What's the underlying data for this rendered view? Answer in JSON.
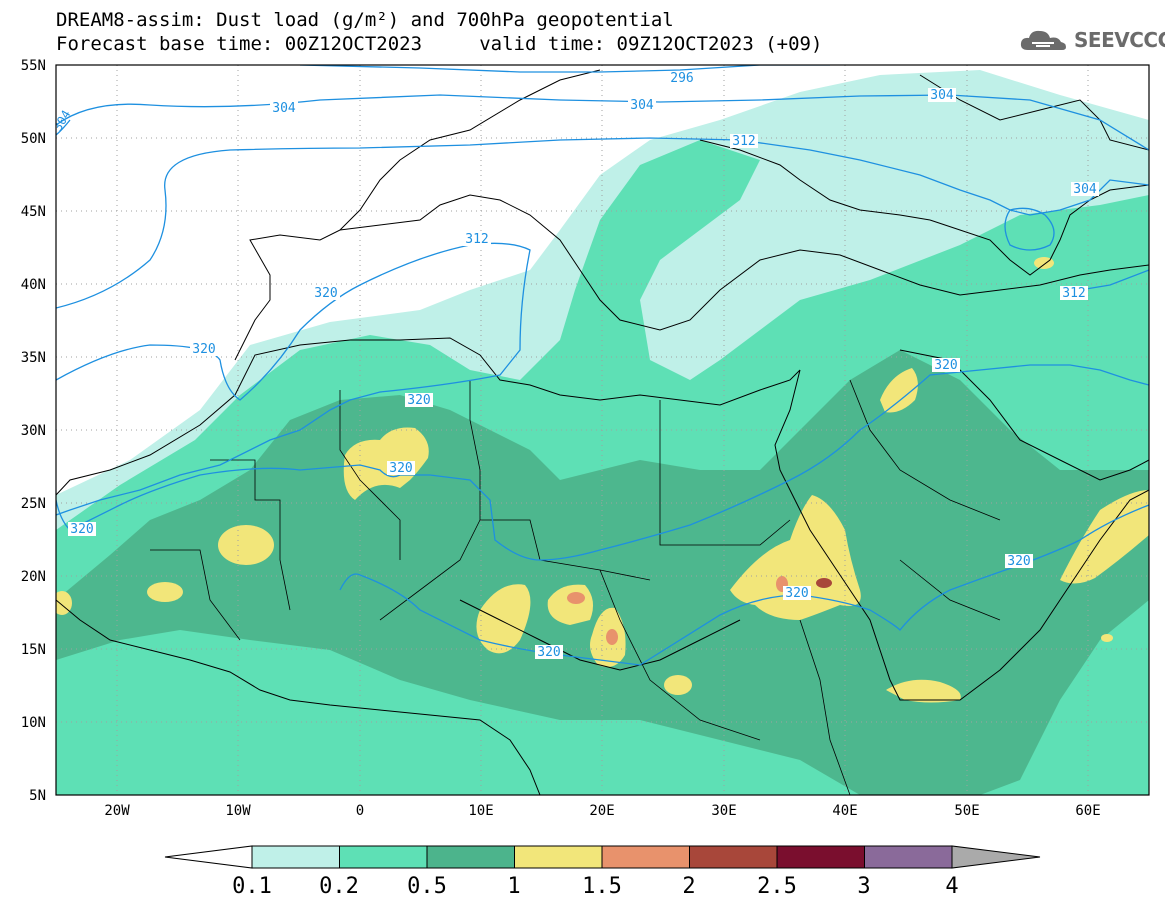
{
  "header": {
    "title_line1": "DREAM8-assim: Dust load (g/m²) and 700hPa geopotential",
    "title_line2": "Forecast base time: 00Z12OCT2023     valid time: 09Z12OCT2023 (+09)"
  },
  "logo": {
    "text": "SEEVCCC",
    "icon": "cloud-icon"
  },
  "map": {
    "lon_range": [
      -25,
      65
    ],
    "lat_range": [
      5,
      55
    ],
    "x_ticks": [
      "20W",
      "10W",
      "0",
      "10E",
      "20E",
      "30E",
      "40E",
      "50E",
      "60E"
    ],
    "y_ticks": [
      "55N",
      "50N",
      "45N",
      "40N",
      "35N",
      "30N",
      "25N",
      "20N",
      "15N",
      "10N",
      "5N"
    ],
    "grid": true,
    "contour_labels": [
      "296",
      "304",
      "304",
      "304",
      "304",
      "304",
      "312",
      "312",
      "312",
      "320",
      "320",
      "320",
      "320",
      "320",
      "320",
      "320",
      "320"
    ]
  },
  "colorbar": {
    "tick_labels": [
      "0.1",
      "0.2",
      "0.5",
      "1",
      "1.5",
      "2",
      "2.5",
      "3",
      "4"
    ],
    "colors": [
      "#bff0e8",
      "#5ee0b5",
      "#4cb48c",
      "#f2e67a",
      "#e8926c",
      "#a8473a",
      "#7a0e2e",
      "#8a6a9a"
    ],
    "low_color": "#ffffff",
    "high_color": "#aaaaaa"
  }
}
